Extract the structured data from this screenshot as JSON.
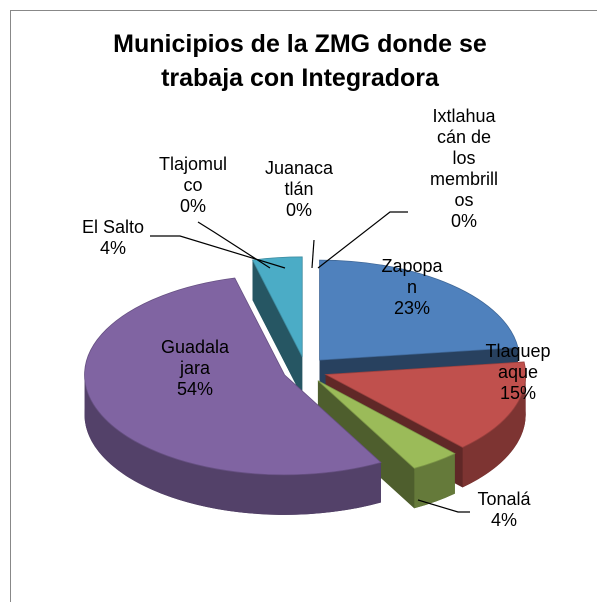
{
  "chart_data": {
    "type": "pie",
    "title": "Municipios de la ZMG donde se trabaja con Integradora",
    "categories": [
      "Zapopan",
      "Tlaquepaque",
      "Tonalá",
      "Guadalajara",
      "El Salto",
      "Tlajomulco",
      "Juanacatlán",
      "Ixtlahuacán de los membrillos"
    ],
    "values": [
      23,
      15,
      4,
      54,
      4,
      0,
      0,
      0
    ],
    "value_labels": [
      "23%",
      "15%",
      "4%",
      "54%",
      "4%",
      "0%",
      "0%",
      "0%"
    ],
    "colors": [
      "#4f81bd",
      "#c0504d",
      "#9bbb59",
      "#8064a2",
      "#4bacc6",
      "#f79646",
      "#2c4d75",
      "#772c2a"
    ]
  }
}
